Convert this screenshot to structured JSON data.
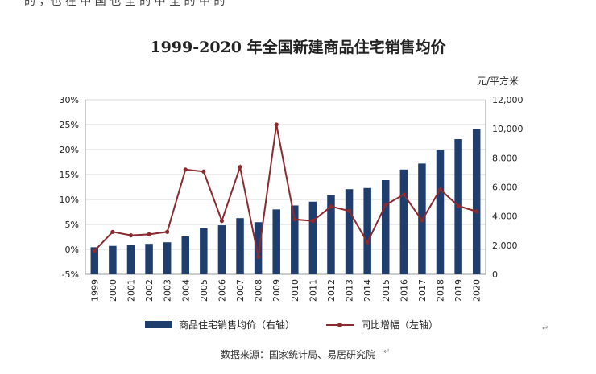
{
  "page": {
    "top_fragment": "的 ，也 在 中 国 也 全 的 中 全 的 中 的",
    "source_note": "数据来源：国家统计局、易居研究院",
    "edit_mark": "↵"
  },
  "colors": {
    "bar": "#1f3e6e",
    "line": "#8b2a2f",
    "grid": "#d9d9d9",
    "axis": "#999999"
  },
  "chart_data": {
    "type": "bar",
    "title": "1999-2020 年全国新建商品住宅销售均价",
    "right_unit_label": "元/平方米",
    "categories": [
      "1999",
      "2000",
      "2001",
      "2002",
      "2003",
      "2004",
      "2005",
      "2006",
      "2007",
      "2008",
      "2009",
      "2010",
      "2011",
      "2012",
      "2013",
      "2014",
      "2015",
      "2016",
      "2017",
      "2018",
      "2019",
      "2020"
    ],
    "y_left": {
      "ticks": [
        "30%",
        "25%",
        "20%",
        "15%",
        "10%",
        "5%",
        "0%",
        "-5%"
      ],
      "min": -5,
      "max": 30
    },
    "y_right": {
      "ticks": [
        "12,000",
        "10,000",
        "8,000",
        "6,000",
        "4,000",
        "2,000",
        "0"
      ],
      "min": 0,
      "max": 12000
    },
    "series": [
      {
        "name": "商品住宅销售均价（右轴）",
        "type": "bar",
        "axis": "right",
        "values": [
          1860,
          1950,
          2020,
          2090,
          2200,
          2600,
          3170,
          3370,
          3860,
          3580,
          4460,
          4730,
          4990,
          5430,
          5850,
          5930,
          6470,
          7200,
          7610,
          8540,
          9290,
          10000
        ]
      },
      {
        "name": "同比增幅（左轴）",
        "type": "line",
        "axis": "left",
        "values": [
          -0.3,
          3.5,
          2.8,
          3.0,
          3.5,
          16.0,
          15.6,
          5.7,
          16.5,
          -1.5,
          25.0,
          6.0,
          5.7,
          8.6,
          7.7,
          1.4,
          8.9,
          11.0,
          5.8,
          12.0,
          8.7,
          7.6
        ]
      }
    ],
    "legend_position": "bottom",
    "grid": true
  }
}
